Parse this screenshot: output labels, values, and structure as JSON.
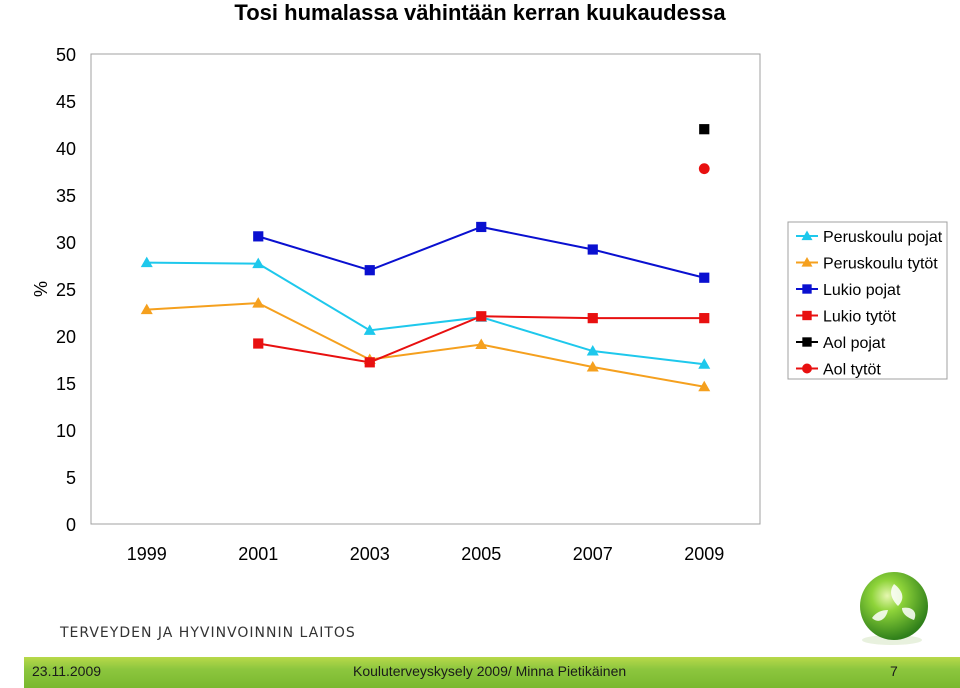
{
  "slide": {
    "title": "Tosi humalassa vähintään kerran kuukaudessa",
    "org_name": "TERVEYDEN JA HYVINVOINNIN LAITOS",
    "footer": {
      "date": "23.11.2009",
      "center": "Kouluterveyskysely 2009/ Minna Pietikäinen",
      "page": "7"
    }
  },
  "chart_data": {
    "type": "line",
    "title": "Tosi humalassa vähintään kerran kuukaudessa",
    "xlabel": "",
    "ylabel": "%",
    "categories": [
      "1999",
      "2001",
      "2003",
      "2005",
      "2007",
      "2009"
    ],
    "ylim": [
      0,
      50
    ],
    "yticks": [
      0,
      5,
      10,
      15,
      20,
      25,
      30,
      35,
      40,
      45,
      50
    ],
    "grid": false,
    "legend_position": "right",
    "series": [
      {
        "name": "Peruskoulu pojat",
        "marker": "triangle",
        "color": "#1ec8ec",
        "values": [
          27.8,
          27.7,
          20.6,
          22.0,
          18.4,
          17.0
        ]
      },
      {
        "name": "Peruskoulu tytöt",
        "marker": "triangle",
        "color": "#f5a01e",
        "values": [
          22.8,
          23.5,
          17.5,
          19.1,
          16.7,
          14.6
        ]
      },
      {
        "name": "Lukio pojat",
        "marker": "square",
        "color": "#0a10d0",
        "values": [
          null,
          30.6,
          27.0,
          31.6,
          29.2,
          26.2
        ]
      },
      {
        "name": "Lukio tytöt",
        "marker": "square",
        "color": "#e81010",
        "values": [
          null,
          19.2,
          17.2,
          22.1,
          21.9,
          21.9
        ]
      },
      {
        "name": "Aol pojat",
        "marker": "square",
        "color": "#000000",
        "values": [
          null,
          null,
          null,
          null,
          null,
          42.0
        ]
      },
      {
        "name": "Aol tytöt",
        "marker": "circle",
        "color": "#e81010",
        "values": [
          null,
          null,
          null,
          null,
          null,
          37.8
        ]
      }
    ]
  }
}
